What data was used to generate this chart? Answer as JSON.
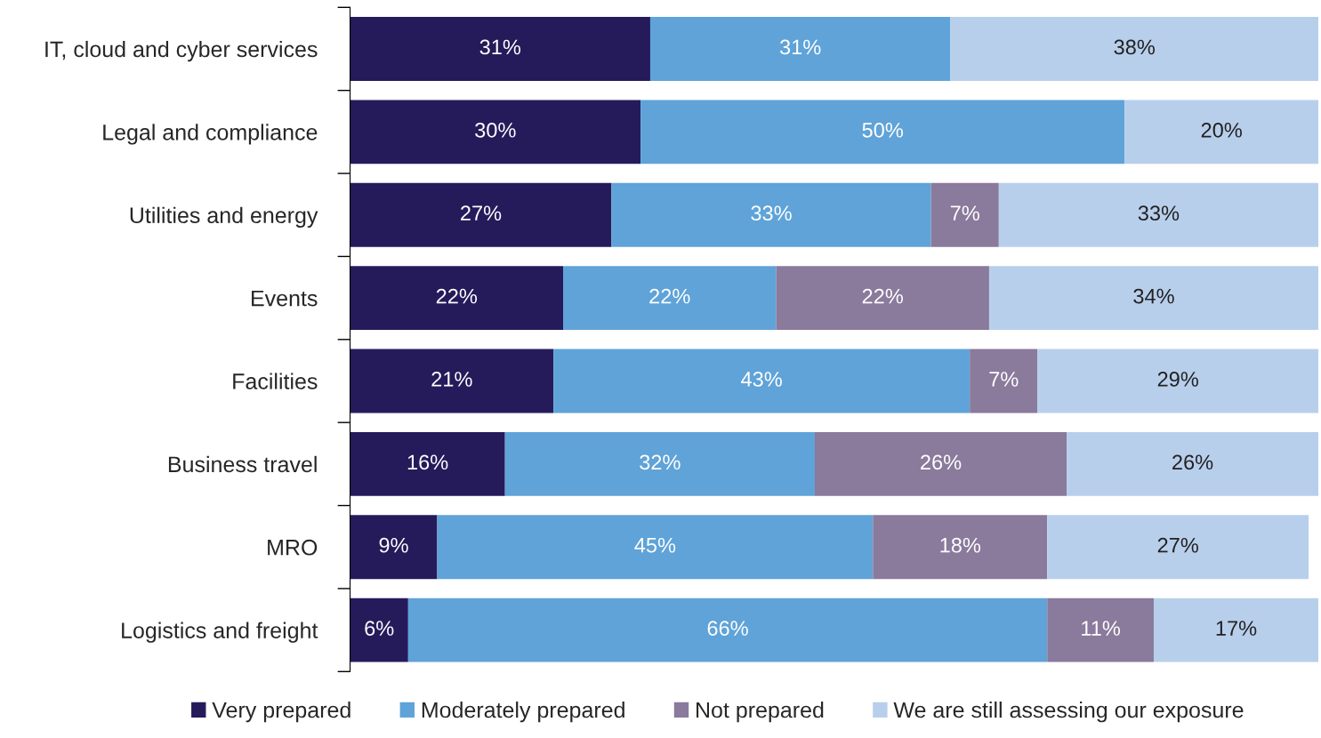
{
  "chart_data": {
    "type": "bar",
    "orientation": "horizontal",
    "stacked": true,
    "legend": "bottom",
    "grid": false,
    "categories": [
      "IT, cloud and cyber services",
      "Legal and compliance",
      "Utilities and energy",
      "Events",
      "Facilities",
      "Business travel",
      "MRO",
      "Logistics and freight"
    ],
    "series": [
      {
        "name": "Very prepared",
        "color": "#251b5b",
        "values": [
          31,
          30,
          27,
          22,
          21,
          16,
          9,
          6
        ],
        "value_labels": [
          "31%",
          "30%",
          "27%",
          "22%",
          "21%",
          "16%",
          "9%",
          "6%"
        ]
      },
      {
        "name": "Moderately prepared",
        "color": "#5fa3d8",
        "values": [
          31,
          50,
          33,
          22,
          43,
          32,
          45,
          66
        ],
        "value_labels": [
          "31%",
          "50%",
          "33%",
          "22%",
          "43%",
          "32%",
          "45%",
          "66%"
        ]
      },
      {
        "name": "Not prepared",
        "color": "#8a7a9c",
        "values": [
          null,
          null,
          7,
          22,
          7,
          26,
          18,
          11
        ],
        "value_labels": [
          null,
          null,
          "7%",
          "22%",
          "7%",
          "26%",
          "18%",
          "11%"
        ]
      },
      {
        "name": "We are still assessing our exposure",
        "color": "#b8cfec",
        "values": [
          38,
          20,
          33,
          34,
          29,
          26,
          27,
          17
        ],
        "value_labels": [
          "38%",
          "20%",
          "33%",
          "34%",
          "29%",
          "26%",
          "27%",
          "17%"
        ]
      }
    ]
  }
}
